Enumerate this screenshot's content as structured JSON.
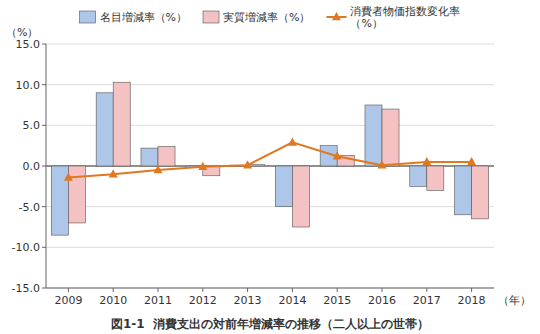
{
  "chart_data": {
    "type": "bar",
    "title": "図1-1  消費支出の対前年増減率の推移（二人以上の世帯）",
    "ylabel": "（%）",
    "xlabel": "（年）",
    "categories": [
      "2009",
      "2010",
      "2011",
      "2012",
      "2013",
      "2014",
      "2015",
      "2016",
      "2017",
      "2018"
    ],
    "series": [
      {
        "name": "名目増減率（%）",
        "color": "#aec6e8",
        "values": [
          -8.5,
          9.0,
          2.2,
          -0.2,
          0.1,
          -5.0,
          2.5,
          7.5,
          -2.5,
          -6.0
        ]
      },
      {
        "name": "実質増減率（%）",
        "color": "#f4c2c2",
        "values": [
          -7.0,
          10.3,
          2.4,
          -1.2,
          0.2,
          -7.5,
          1.3,
          7.0,
          -3.0,
          -6.5
        ]
      },
      {
        "name": "消費者物価指数変化率\n（%）",
        "type": "line",
        "color": "#e07820",
        "marker": "triangle",
        "values": [
          -1.4,
          -1.0,
          -0.5,
          -0.1,
          0.1,
          2.9,
          1.2,
          0.1,
          0.5,
          0.5
        ]
      }
    ],
    "ylim": [
      -15.0,
      15.0
    ],
    "yticks": [
      {
        "value": -15.0,
        "label": "-15.0"
      },
      {
        "value": -10.0,
        "label": "-10.0"
      },
      {
        "value": -5.0,
        "label": "-5.0"
      },
      {
        "value": 0.0,
        "label": "0.0"
      },
      {
        "value": 5.0,
        "label": "5.0"
      },
      {
        "value": 10.0,
        "label": "10.0"
      },
      {
        "value": 15.0,
        "label": "15.0"
      }
    ],
    "grid": true,
    "legend": "top"
  }
}
